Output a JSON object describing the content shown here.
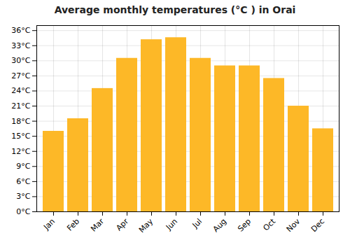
{
  "chart_data": {
    "type": "bar",
    "title": "Average monthly temperatures (°C ) in Orai",
    "categories": [
      "Jan",
      "Feb",
      "Mar",
      "Apr",
      "May",
      "Jun",
      "Jul",
      "Aug",
      "Sep",
      "Oct",
      "Nov",
      "Dec"
    ],
    "values": [
      16.0,
      18.5,
      24.5,
      30.5,
      34.2,
      34.6,
      30.5,
      29.0,
      29.0,
      26.5,
      21.0,
      16.5
    ],
    "color": "#FDB827",
    "ylim": [
      0,
      37
    ],
    "yticks": [
      {
        "value": 0,
        "label": "0°C"
      },
      {
        "value": 3,
        "label": "3°C"
      },
      {
        "value": 6,
        "label": "6°C"
      },
      {
        "value": 9,
        "label": "9°C"
      },
      {
        "value": 12,
        "label": "12°C"
      },
      {
        "value": 15,
        "label": "15°C"
      },
      {
        "value": 18,
        "label": "18°C"
      },
      {
        "value": 21,
        "label": "21°C"
      },
      {
        "value": 24,
        "label": "24°C"
      },
      {
        "value": 27,
        "label": "27°C"
      },
      {
        "value": 30,
        "label": "30°C"
      },
      {
        "value": 33,
        "label": "33°C"
      },
      {
        "value": 36,
        "label": "36°C"
      }
    ],
    "grid": true
  }
}
